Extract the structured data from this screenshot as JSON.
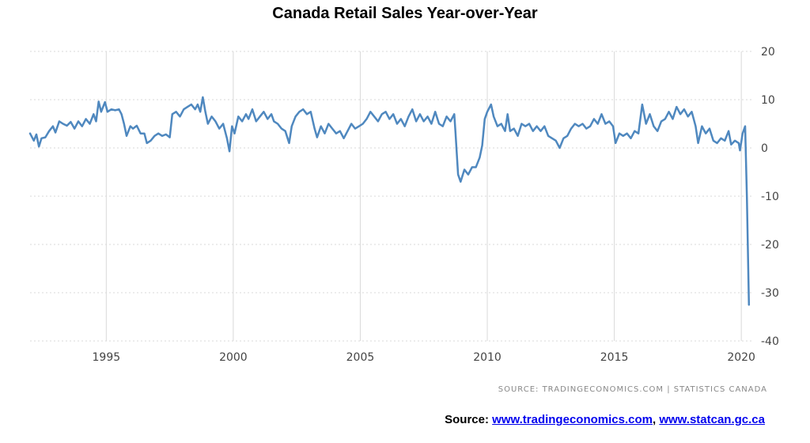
{
  "title": "Canada Retail Sales Year-over-Year",
  "attribution": "SOURCE:  TRADINGECONOMICS.COM  |  STATISTICS CANADA",
  "footer": {
    "label": "Source:",
    "link1": "www.tradingeconomics.com",
    "separator": ",",
    "link2": "www.statcan.gc.ca"
  },
  "colors": {
    "line": "#4f88bf",
    "grid": "#d9d9d9",
    "link": "#0000ee"
  },
  "chart_data": {
    "type": "line",
    "title": "Canada Retail Sales Year-over-Year",
    "xlabel": "",
    "ylabel": "",
    "xlim": [
      1992.0,
      2020.4
    ],
    "ylim": [
      -40,
      20
    ],
    "yticks": [
      20,
      10,
      0,
      -10,
      -20,
      -30,
      -40
    ],
    "xticks": [
      1995,
      2000,
      2005,
      2010,
      2015,
      2020
    ],
    "grid": true,
    "legend": "none",
    "series": [
      {
        "values": [
          [
            1992.0,
            3.0
          ],
          [
            1992.15,
            1.5
          ],
          [
            1992.25,
            2.8
          ],
          [
            1992.35,
            0.3
          ],
          [
            1992.45,
            2.0
          ],
          [
            1992.6,
            2.2
          ],
          [
            1992.75,
            3.5
          ],
          [
            1992.9,
            4.5
          ],
          [
            1993.0,
            3.2
          ],
          [
            1993.15,
            5.5
          ],
          [
            1993.3,
            5.0
          ],
          [
            1993.45,
            4.6
          ],
          [
            1993.6,
            5.4
          ],
          [
            1993.75,
            4.0
          ],
          [
            1993.9,
            5.5
          ],
          [
            1994.05,
            4.5
          ],
          [
            1994.2,
            6.0
          ],
          [
            1994.35,
            5.0
          ],
          [
            1994.5,
            7.0
          ],
          [
            1994.6,
            5.5
          ],
          [
            1994.7,
            9.6
          ],
          [
            1994.8,
            7.5
          ],
          [
            1994.95,
            9.5
          ],
          [
            1995.05,
            7.5
          ],
          [
            1995.2,
            8.0
          ],
          [
            1995.35,
            7.8
          ],
          [
            1995.5,
            8.0
          ],
          [
            1995.6,
            7.0
          ],
          [
            1995.7,
            5.0
          ],
          [
            1995.8,
            2.5
          ],
          [
            1995.95,
            4.5
          ],
          [
            1996.05,
            4.0
          ],
          [
            1996.2,
            4.6
          ],
          [
            1996.35,
            3.0
          ],
          [
            1996.5,
            3.0
          ],
          [
            1996.6,
            1.0
          ],
          [
            1996.75,
            1.5
          ],
          [
            1996.9,
            2.5
          ],
          [
            1997.05,
            3.0
          ],
          [
            1997.2,
            2.5
          ],
          [
            1997.35,
            2.8
          ],
          [
            1997.5,
            2.2
          ],
          [
            1997.6,
            7.0
          ],
          [
            1997.75,
            7.5
          ],
          [
            1997.9,
            6.5
          ],
          [
            1998.05,
            8.0
          ],
          [
            1998.2,
            8.5
          ],
          [
            1998.35,
            9.0
          ],
          [
            1998.5,
            8.0
          ],
          [
            1998.6,
            9.0
          ],
          [
            1998.7,
            7.5
          ],
          [
            1998.8,
            10.5
          ],
          [
            1998.9,
            7.5
          ],
          [
            1999.0,
            5.0
          ],
          [
            1999.15,
            6.5
          ],
          [
            1999.3,
            5.5
          ],
          [
            1999.45,
            4.0
          ],
          [
            1999.6,
            5.0
          ],
          [
            1999.75,
            2.0
          ],
          [
            1999.85,
            -0.7
          ],
          [
            1999.95,
            4.5
          ],
          [
            2000.05,
            3.0
          ],
          [
            2000.2,
            6.5
          ],
          [
            2000.35,
            5.5
          ],
          [
            2000.5,
            7.0
          ],
          [
            2000.6,
            6.0
          ],
          [
            2000.75,
            8.0
          ],
          [
            2000.9,
            5.5
          ],
          [
            2001.05,
            6.5
          ],
          [
            2001.2,
            7.5
          ],
          [
            2001.35,
            6.0
          ],
          [
            2001.5,
            7.0
          ],
          [
            2001.6,
            5.5
          ],
          [
            2001.75,
            5.0
          ],
          [
            2001.9,
            4.0
          ],
          [
            2002.05,
            3.5
          ],
          [
            2002.2,
            1.0
          ],
          [
            2002.3,
            4.5
          ],
          [
            2002.45,
            6.5
          ],
          [
            2002.6,
            7.5
          ],
          [
            2002.75,
            8.0
          ],
          [
            2002.9,
            7.0
          ],
          [
            2003.05,
            7.5
          ],
          [
            2003.2,
            4.0
          ],
          [
            2003.3,
            2.2
          ],
          [
            2003.45,
            4.5
          ],
          [
            2003.6,
            3.0
          ],
          [
            2003.75,
            5.0
          ],
          [
            2003.9,
            4.0
          ],
          [
            2004.05,
            3.0
          ],
          [
            2004.2,
            3.5
          ],
          [
            2004.35,
            2.0
          ],
          [
            2004.5,
            3.5
          ],
          [
            2004.65,
            5.0
          ],
          [
            2004.8,
            4.0
          ],
          [
            2004.95,
            4.5
          ],
          [
            2005.1,
            5.0
          ],
          [
            2005.25,
            6.0
          ],
          [
            2005.4,
            7.5
          ],
          [
            2005.55,
            6.5
          ],
          [
            2005.7,
            5.5
          ],
          [
            2005.85,
            7.0
          ],
          [
            2006.0,
            7.5
          ],
          [
            2006.15,
            6.0
          ],
          [
            2006.3,
            7.0
          ],
          [
            2006.45,
            5.0
          ],
          [
            2006.6,
            6.0
          ],
          [
            2006.75,
            4.5
          ],
          [
            2006.9,
            6.5
          ],
          [
            2007.05,
            8.0
          ],
          [
            2007.2,
            5.5
          ],
          [
            2007.35,
            7.0
          ],
          [
            2007.5,
            5.5
          ],
          [
            2007.65,
            6.5
          ],
          [
            2007.8,
            5.0
          ],
          [
            2007.95,
            7.5
          ],
          [
            2008.1,
            5.0
          ],
          [
            2008.25,
            4.5
          ],
          [
            2008.4,
            6.5
          ],
          [
            2008.55,
            5.5
          ],
          [
            2008.7,
            7.0
          ],
          [
            2008.75,
            3.0
          ],
          [
            2008.85,
            -5.5
          ],
          [
            2008.95,
            -7.0
          ],
          [
            2009.1,
            -4.5
          ],
          [
            2009.25,
            -5.5
          ],
          [
            2009.4,
            -4.0
          ],
          [
            2009.55,
            -4.0
          ],
          [
            2009.7,
            -2.0
          ],
          [
            2009.8,
            0.5
          ],
          [
            2009.9,
            6.0
          ],
          [
            2010.0,
            7.5
          ],
          [
            2010.15,
            9.0
          ],
          [
            2010.25,
            6.5
          ],
          [
            2010.4,
            4.5
          ],
          [
            2010.55,
            5.0
          ],
          [
            2010.7,
            3.5
          ],
          [
            2010.8,
            7.0
          ],
          [
            2010.9,
            3.5
          ],
          [
            2011.05,
            4.0
          ],
          [
            2011.2,
            2.5
          ],
          [
            2011.35,
            5.0
          ],
          [
            2011.5,
            4.5
          ],
          [
            2011.65,
            5.0
          ],
          [
            2011.8,
            3.5
          ],
          [
            2011.95,
            4.5
          ],
          [
            2012.1,
            3.5
          ],
          [
            2012.25,
            4.5
          ],
          [
            2012.4,
            2.5
          ],
          [
            2012.55,
            2.0
          ],
          [
            2012.7,
            1.5
          ],
          [
            2012.85,
            0.0
          ],
          [
            2013.0,
            2.0
          ],
          [
            2013.15,
            2.5
          ],
          [
            2013.3,
            4.0
          ],
          [
            2013.45,
            5.0
          ],
          [
            2013.6,
            4.5
          ],
          [
            2013.75,
            5.0
          ],
          [
            2013.9,
            4.0
          ],
          [
            2014.05,
            4.5
          ],
          [
            2014.2,
            6.0
          ],
          [
            2014.35,
            5.0
          ],
          [
            2014.5,
            7.0
          ],
          [
            2014.65,
            5.0
          ],
          [
            2014.8,
            5.5
          ],
          [
            2014.95,
            4.5
          ],
          [
            2015.05,
            1.0
          ],
          [
            2015.2,
            3.0
          ],
          [
            2015.35,
            2.5
          ],
          [
            2015.5,
            3.0
          ],
          [
            2015.65,
            2.0
          ],
          [
            2015.8,
            3.5
          ],
          [
            2015.95,
            3.0
          ],
          [
            2016.1,
            9.0
          ],
          [
            2016.25,
            5.0
          ],
          [
            2016.4,
            7.0
          ],
          [
            2016.55,
            4.5
          ],
          [
            2016.7,
            3.5
          ],
          [
            2016.85,
            5.5
          ],
          [
            2017.0,
            6.0
          ],
          [
            2017.15,
            7.5
          ],
          [
            2017.3,
            6.0
          ],
          [
            2017.45,
            8.5
          ],
          [
            2017.6,
            7.0
          ],
          [
            2017.75,
            8.0
          ],
          [
            2017.9,
            6.5
          ],
          [
            2018.05,
            7.5
          ],
          [
            2018.2,
            4.5
          ],
          [
            2018.3,
            1.0
          ],
          [
            2018.45,
            4.5
          ],
          [
            2018.6,
            3.0
          ],
          [
            2018.75,
            4.0
          ],
          [
            2018.9,
            1.5
          ],
          [
            2019.05,
            1.0
          ],
          [
            2019.2,
            2.0
          ],
          [
            2019.35,
            1.5
          ],
          [
            2019.5,
            3.5
          ],
          [
            2019.6,
            0.7
          ],
          [
            2019.75,
            1.5
          ],
          [
            2019.9,
            1.0
          ],
          [
            2019.95,
            -0.5
          ],
          [
            2020.05,
            3.0
          ],
          [
            2020.15,
            4.5
          ],
          [
            2020.22,
            -10.0
          ],
          [
            2020.3,
            -32.5
          ]
        ]
      }
    ]
  }
}
